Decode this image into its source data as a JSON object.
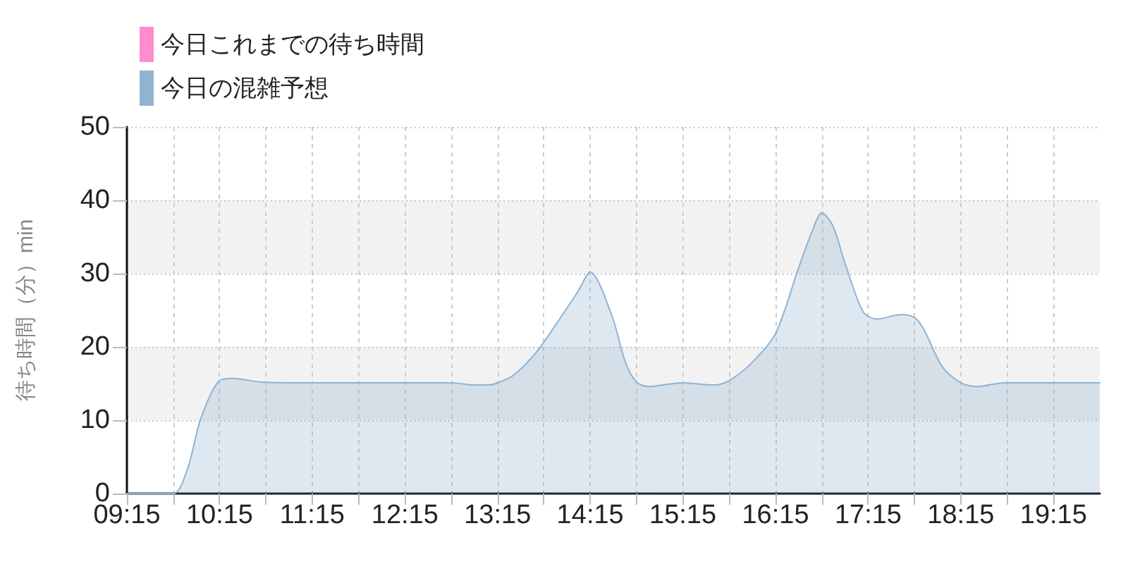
{
  "chart_data": {
    "type": "area",
    "ylabel": "待ち時間（分）min",
    "series": [
      {
        "name": "今日これまでの待ち時間",
        "color": "#ff8ccc"
      },
      {
        "name": "今日の混雑予想",
        "color": "#90b3d2",
        "x": [
          9.25,
          9.75,
          9.9,
          10.05,
          10.25,
          10.4,
          10.7,
          11.25,
          12.75,
          13.0,
          13.15,
          13.25,
          13.42,
          13.67,
          13.92,
          14.12,
          14.25,
          14.48,
          14.63,
          14.75,
          14.88,
          15.25,
          15.58,
          15.75,
          16.0,
          16.25,
          16.5,
          16.65,
          16.75,
          16.87,
          17.0,
          17.2,
          17.35,
          17.6,
          17.75,
          17.85,
          18.05,
          18.25,
          18.43,
          18.72,
          19.75
        ],
        "values": [
          0,
          0,
          3.2,
          10.3,
          15.4,
          15.7,
          15.2,
          15.1,
          15.1,
          14.8,
          14.8,
          15.1,
          16.1,
          19.3,
          23.8,
          27.6,
          30.2,
          24.4,
          17.9,
          15.2,
          14.6,
          15.1,
          14.8,
          15.4,
          17.9,
          21.8,
          30.8,
          35.9,
          38.3,
          36.5,
          31.4,
          24.7,
          23.8,
          24.4,
          24.0,
          22.4,
          17.3,
          15.1,
          14.6,
          15.1,
          15.1
        ]
      }
    ],
    "xlim": [
      9.25,
      19.75
    ],
    "xticks": [
      {
        "value": 9.25,
        "label": "09:15"
      },
      {
        "value": 9.75,
        "label": null
      },
      {
        "value": 10.25,
        "label": "10:15"
      },
      {
        "value": 10.75,
        "label": null
      },
      {
        "value": 11.25,
        "label": "11:15"
      },
      {
        "value": 11.75,
        "label": null
      },
      {
        "value": 12.25,
        "label": "12:15"
      },
      {
        "value": 12.75,
        "label": null
      },
      {
        "value": 13.25,
        "label": "13:15"
      },
      {
        "value": 13.75,
        "label": null
      },
      {
        "value": 14.25,
        "label": "14:15"
      },
      {
        "value": 14.75,
        "label": null
      },
      {
        "value": 15.25,
        "label": "15:15"
      },
      {
        "value": 15.75,
        "label": null
      },
      {
        "value": 16.25,
        "label": "16:15"
      },
      {
        "value": 16.75,
        "label": null
      },
      {
        "value": 17.25,
        "label": "17:15"
      },
      {
        "value": 17.75,
        "label": null
      },
      {
        "value": 18.25,
        "label": "18:15"
      },
      {
        "value": 18.75,
        "label": null
      },
      {
        "value": 19.25,
        "label": "19:15"
      }
    ],
    "ylim": [
      0,
      50
    ],
    "yticks": [
      0,
      10,
      20,
      30,
      40,
      50
    ],
    "grid": true,
    "legend": "top left",
    "marker": "none"
  }
}
